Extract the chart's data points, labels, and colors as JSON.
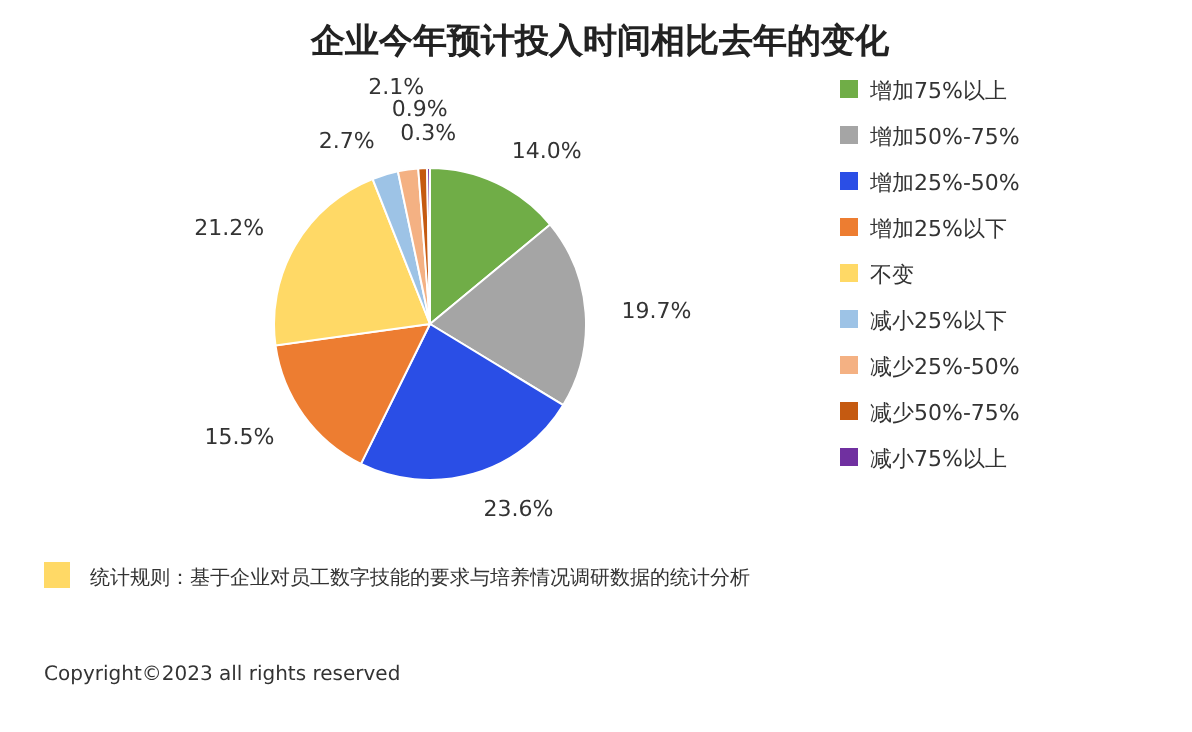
{
  "chart_data": {
    "type": "pie",
    "title": "企业今年预计投入时间相比去年的变化",
    "categories": [
      "增加75%以上",
      "增加50%-75%",
      "增加25%-50%",
      "增加25%以下",
      "不变",
      "减小25%以下",
      "减少25%-50%",
      "减少50%-75%",
      "减小75%以上"
    ],
    "values": [
      14.0,
      19.7,
      23.6,
      15.5,
      21.2,
      2.7,
      2.1,
      0.9,
      0.3
    ],
    "colors": [
      "#70ad47",
      "#a5a5a5",
      "#2a4ee6",
      "#ed7d31",
      "#ffd966",
      "#9dc3e6",
      "#f4b183",
      "#c55a11",
      "#7030a0"
    ],
    "value_labels": [
      "14.0%",
      "19.7%",
      "23.6%",
      "15.5%",
      "21.2%",
      "2.7%",
      "2.1%",
      "0.9%",
      "0.3%"
    ],
    "legend": "right",
    "annotations": [
      "统计规则：基于企业对员工数字技能的要求与培养情况调研数据的统计分析",
      "Copyright©2023 all rights reserved"
    ]
  }
}
